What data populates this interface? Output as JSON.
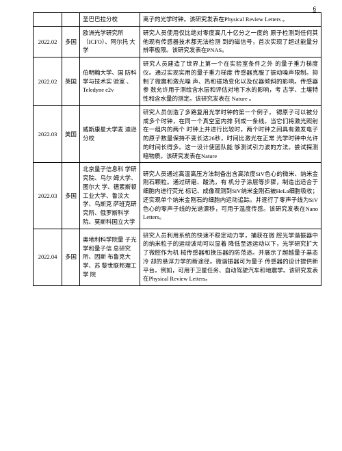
{
  "page_number": "6",
  "rows": [
    {
      "date": "",
      "country": "",
      "institution": "圣巴巴拉分校",
      "description": "离子的光学时钟。该研究发表在Physical Review Letters 。"
    },
    {
      "date": "2022.02",
      "country": "多国",
      "institution": "欧洲光学研究所（ICFO）、阿尔托 大学",
      "description": "研究人员使用仅比绝对零度高几十亿分之一度的 原子检测到任何其他现有传感器技术都无法检测 到的磁信号，首次实现了超过能量分辨率极限。该研究发表在PNAS。"
    },
    {
      "date": "2022.02",
      "country": "英国",
      "institution": "伯明翰大学、国 防科学与技术实 验室 、Teledyne e2v",
      "description": "研究人员建造了世界上第一个在实验室条件之外 的量子重力梯度仪。通过实现实用的量子重力梯度 传感器克服了振动噪声限制。抑制了微震和激光噪 声、热和磁场变化以及仪器倾斜的影响。传感器参 数允许用于测绘含水层和评估对地下水的影响，考 古学、土壤特性和含水量的测定。该研究发表在 Nature 。"
    },
    {
      "date": "2022.03",
      "country": "美国",
      "institution": "威斯康星大学麦 迪逊分校",
      "description": "研究人员创造了多路复用光学时钟的第一个例子， 锶原子可以被分成多个时钟，在同一个真空室内排 列成一条线。当它们将激光照射在一组内的两个 时钟上并进行比较时，两个时钟之间具有激发电子 的原子数量保持不变长达26秒，时间比激光在正常 光学时钟中允许的时间长得多。这一设计使团队能 够测试引力波的方法。尝试探测暗物质。该研究发表在Nature"
    },
    {
      "date": "2022.03",
      "country": "多国",
      "institution": "北京量子信息科 学研究院、乌尔 姆大学、图尔大 学、德累斯顿工业大学、鲁汶大 学、乌斯克 萨班克研究所、俄罗斯科学院、莫斯科国立大学",
      "description": "研究人员通过高温高压方法制备出含高浓度SiV色心的微米、纳米金刚石颗粒。通过研磨、酸洗，有 机分子涂层等步骤，制造出适合于细胞内进行荧光 标记、成像观测到SiV纳米金刚石被HeLa细胞吸收；还实现单个纳米金刚石的细胞内运动追踪。并逐行了零声子线为SiV色心的零声子线的光谱漂移，可用于温度传感。该研究发表在Nano Letters。"
    },
    {
      "date": "2022.04",
      "country": "多国",
      "institution": "奥地利科学院量 子光学和量子信 息研究所、因斯 布鲁克大学、苏 黎世联邦理工学 院",
      "description": "研究人员利用系统的快速不稳定动力学，捕获在微 腔光学谐振器中的纳米粒子的运动波动可以显着 降低至远运动以下，光学研究扩大了微腔作为机 械传感器和换压器的防范途。并展示了超越量子基态冷 却的悬浮力学的新途径。微谐振器可为量子 传感器的设计提供新平台。例如，可用于卫星任务、自动驾驶汽车和地震学。该研究发表在Physical Review Letters。"
    }
  ]
}
